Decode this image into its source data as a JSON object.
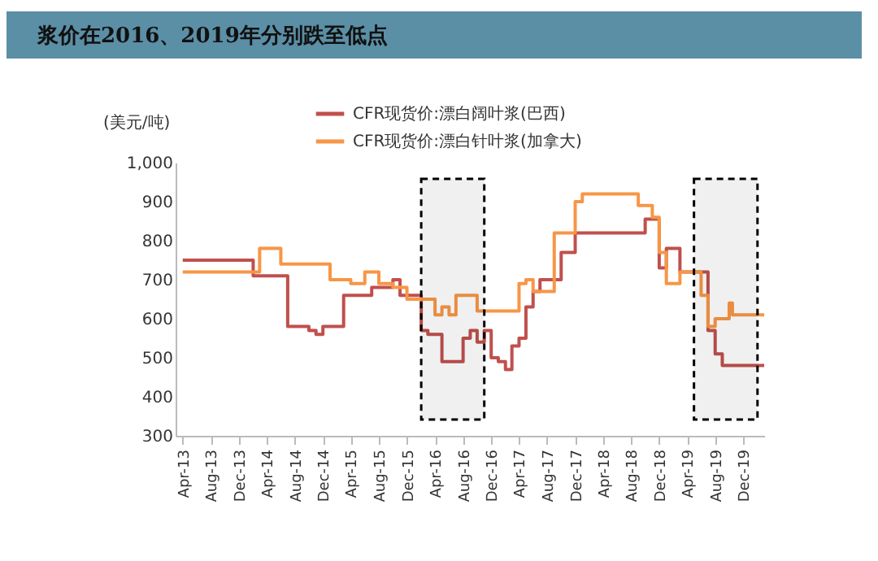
{
  "chart_data": {
    "type": "step",
    "title": "浆价在2016、2019年分别跌至低点",
    "ylabel": "(美元/吨)",
    "legend": "top",
    "grid": false,
    "xlim": [
      "2013-03",
      "2020-03"
    ],
    "xticks": [
      {
        "value": "2013-04",
        "label": "Apr-13"
      },
      {
        "value": "2013-08",
        "label": "Aug-13"
      },
      {
        "value": "2013-12",
        "label": "Dec-13"
      },
      {
        "value": "2014-04",
        "label": "Apr-14"
      },
      {
        "value": "2014-08",
        "label": "Aug-14"
      },
      {
        "value": "2014-12",
        "label": "Dec-14"
      },
      {
        "value": "2015-04",
        "label": "Apr-15"
      },
      {
        "value": "2015-08",
        "label": "Aug-15"
      },
      {
        "value": "2015-12",
        "label": "Dec-15"
      },
      {
        "value": "2016-04",
        "label": "Apr-16"
      },
      {
        "value": "2016-08",
        "label": "Aug-16"
      },
      {
        "value": "2016-12",
        "label": "Dec-16"
      },
      {
        "value": "2017-04",
        "label": "Apr-17"
      },
      {
        "value": "2017-08",
        "label": "Aug-17"
      },
      {
        "value": "2017-12",
        "label": "Dec-17"
      },
      {
        "value": "2018-04",
        "label": "Apr-18"
      },
      {
        "value": "2018-08",
        "label": "Aug-18"
      },
      {
        "value": "2018-12",
        "label": "Dec-18"
      },
      {
        "value": "2019-04",
        "label": "Apr-19"
      },
      {
        "value": "2019-08",
        "label": "Aug-19"
      },
      {
        "value": "2019-12",
        "label": "Dec-19"
      }
    ],
    "ylim": [
      300,
      1000
    ],
    "yticks": [
      300,
      400,
      500,
      600,
      700,
      800,
      900,
      {
        "value": 1000,
        "label": "1,000"
      }
    ],
    "bands": [
      {
        "axis": "x",
        "from": "2016-02",
        "to": "2016-11",
        "color": "#000000"
      },
      {
        "axis": "x",
        "from": "2019-05",
        "to": "2020-02",
        "color": "#000000"
      }
    ],
    "series": [
      {
        "name": "CFR现货价:漂白阔叶浆(巴西)",
        "color": "#c0504d",
        "x": [
          "2013-04",
          "2014-01",
          "2014-02",
          "2014-06",
          "2014-07",
          "2014-10",
          "2014-11",
          "2014-12",
          "2015-02",
          "2015-03",
          "2015-06",
          "2015-07",
          "2015-10",
          "2015-11",
          "2016-01",
          "2016-02",
          "2016-03",
          "2016-05",
          "2016-07",
          "2016-08",
          "2016-09",
          "2016-10",
          "2016-11",
          "2016-12",
          "2017-01",
          "2017-02",
          "2017-03",
          "2017-04",
          "2017-05",
          "2017-06",
          "2017-07",
          "2017-09",
          "2017-10",
          "2017-12",
          "2018-09",
          "2018-10",
          "2018-11",
          "2018-12",
          "2019-01",
          "2019-03",
          "2019-06",
          "2019-07",
          "2019-08",
          "2019-09",
          "2020-03"
        ],
        "values": [
          750,
          750,
          710,
          710,
          580,
          570,
          560,
          580,
          580,
          660,
          660,
          680,
          700,
          660,
          660,
          570,
          560,
          490,
          490,
          550,
          570,
          540,
          570,
          500,
          490,
          470,
          530,
          550,
          630,
          670,
          700,
          700,
          770,
          820,
          820,
          855,
          855,
          730,
          780,
          720,
          720,
          570,
          510,
          480,
          480
        ]
      },
      {
        "name": "CFR现货价:漂白针叶浆(加拿大)",
        "color": "#f79646",
        "x": [
          "2013-04",
          "2014-02",
          "2014-03",
          "2014-05",
          "2014-06",
          "2014-12",
          "2015-01",
          "2015-04",
          "2015-06",
          "2015-08",
          "2015-10",
          "2015-12",
          "2016-03",
          "2016-04",
          "2016-05",
          "2016-06",
          "2016-07",
          "2016-09",
          "2016-10",
          "2017-02",
          "2017-04",
          "2017-05",
          "2017-06",
          "2017-08",
          "2017-09",
          "2017-11",
          "2017-12",
          "2018-01",
          "2018-08",
          "2018-09",
          "2018-11",
          "2018-12",
          "2019-01",
          "2019-03",
          "2019-05",
          "2019-06",
          "2019-07",
          "2019-08",
          "2019-09",
          "2019-10",
          "2019-10-15",
          "2020-03"
        ],
        "values": [
          720,
          720,
          780,
          780,
          740,
          740,
          700,
          690,
          720,
          690,
          680,
          650,
          650,
          610,
          630,
          610,
          660,
          660,
          620,
          620,
          690,
          700,
          670,
          670,
          820,
          820,
          900,
          920,
          920,
          890,
          860,
          770,
          690,
          720,
          720,
          660,
          580,
          600,
          600,
          640,
          610,
          610
        ]
      }
    ]
  }
}
